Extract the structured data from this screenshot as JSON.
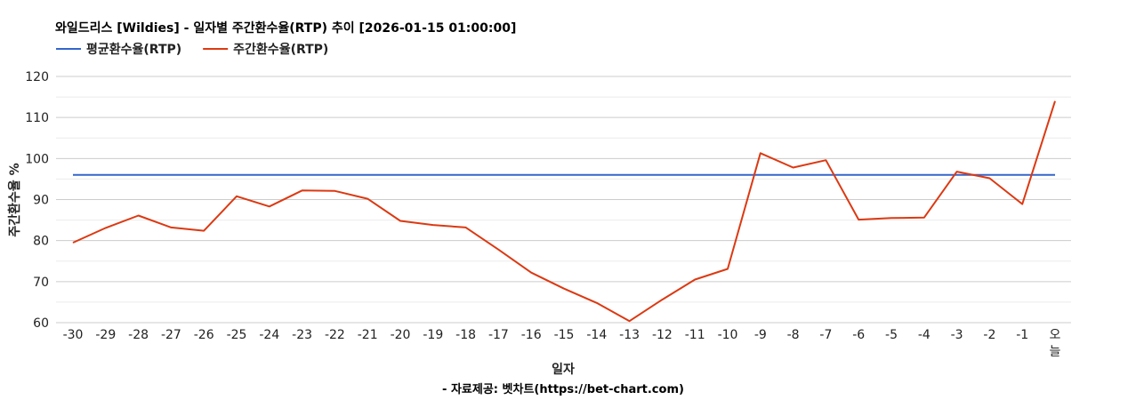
{
  "chart_data": {
    "type": "line",
    "title": "와일드리스 [Wildies] - 일자별 주간환수율(RTP) 추이 [2026-01-15 01:00:00]",
    "xlabel": "일자",
    "ylabel": "주간환수율 %",
    "credit": "- 자료제공: 벳차트(https://bet-chart.com)",
    "ylim": [
      60,
      120
    ],
    "yticks": [
      60,
      70,
      80,
      90,
      100,
      110,
      120
    ],
    "categories": [
      "-30",
      "-29",
      "-28",
      "-27",
      "-26",
      "-25",
      "-24",
      "-23",
      "-22",
      "-21",
      "-20",
      "-19",
      "-18",
      "-17",
      "-16",
      "-15",
      "-14",
      "-13",
      "-12",
      "-11",
      "-10",
      "-9",
      "-8",
      "-7",
      "-6",
      "-5",
      "-4",
      "-3",
      "-2",
      "-1",
      "오늘"
    ],
    "grid": true,
    "legend_position": "top-left",
    "series": [
      {
        "name": "평균환수율(RTP)",
        "color": "#3366cc",
        "values": [
          96,
          96,
          96,
          96,
          96,
          96,
          96,
          96,
          96,
          96,
          96,
          96,
          96,
          96,
          96,
          96,
          96,
          96,
          96,
          96,
          96,
          96,
          96,
          96,
          96,
          96,
          96,
          96,
          96,
          96,
          96
        ]
      },
      {
        "name": "주간환수율(RTP)",
        "color": "#dc3912",
        "values": [
          79.5,
          83.1,
          86.1,
          83.2,
          82.4,
          90.8,
          88.3,
          92.2,
          92.1,
          90.2,
          84.8,
          83.8,
          83.2,
          77.8,
          72.2,
          68.3,
          64.8,
          60.4,
          65.6,
          70.5,
          73.1,
          101.3,
          97.8,
          99.6,
          85.1,
          85.5,
          85.6,
          96.8,
          95.2,
          88.9,
          114.0
        ]
      }
    ]
  }
}
